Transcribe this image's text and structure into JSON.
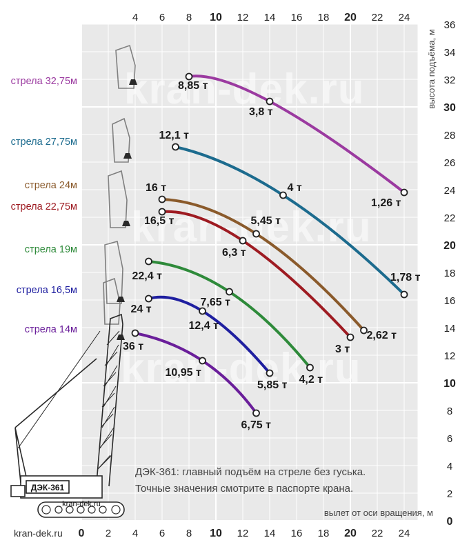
{
  "chart_data": {
    "type": "line",
    "x_axis": {
      "title": "вылет от оси вращения, м",
      "min": 0,
      "max": 25,
      "ticks_top": [
        4,
        6,
        8,
        10,
        12,
        14,
        16,
        18,
        20,
        22,
        24
      ],
      "ticks_bottom": [
        0,
        2,
        4,
        6,
        8,
        10,
        12,
        14,
        16,
        18,
        20,
        22,
        24
      ],
      "bold_ticks": [
        0,
        10,
        20
      ]
    },
    "y_axis": {
      "title": "высота подъёма, м",
      "min": 0,
      "max": 36,
      "ticks": [
        0,
        2,
        4,
        6,
        8,
        10,
        12,
        14,
        16,
        18,
        20,
        22,
        24,
        26,
        28,
        30,
        32,
        34,
        36
      ],
      "bold_ticks": [
        0,
        10,
        20,
        30
      ]
    },
    "grid": true,
    "series": [
      {
        "name": "стрела 32,75м",
        "color": "#9b3aa0",
        "points": [
          {
            "x": 8,
            "y": 32.2,
            "label": "8,85 т"
          },
          {
            "x": 14,
            "y": 30.4,
            "label": "3,8 т"
          },
          {
            "x": 24,
            "y": 23.8,
            "label": "1,26 т"
          }
        ]
      },
      {
        "name": "стрела 27,75м",
        "color": "#1c6b8e",
        "points": [
          {
            "x": 7,
            "y": 27.1,
            "label": "12,1 т"
          },
          {
            "x": 15,
            "y": 23.6,
            "label": "4 т"
          },
          {
            "x": 24,
            "y": 16.4,
            "label": "1,78 т"
          }
        ]
      },
      {
        "name": "стрела 24м",
        "color": "#8a5a2b",
        "points": [
          {
            "x": 6,
            "y": 23.3,
            "label": "16 т"
          },
          {
            "x": 13,
            "y": 20.8,
            "label": "5,45 т"
          },
          {
            "x": 21,
            "y": 13.8,
            "label": "2,62 т"
          }
        ]
      },
      {
        "name": "стрела 22,75м",
        "color": "#9e1b22",
        "points": [
          {
            "x": 6,
            "y": 22.4,
            "label": "16,5 т"
          },
          {
            "x": 12,
            "y": 20.3,
            "label": "6,3 т"
          },
          {
            "x": 20,
            "y": 13.3,
            "label": "3 т"
          }
        ]
      },
      {
        "name": "стрела 19м",
        "color": "#2e8a3a",
        "points": [
          {
            "x": 5,
            "y": 18.8,
            "label": "22,4 т"
          },
          {
            "x": 11,
            "y": 16.6,
            "label": "7,65 т"
          },
          {
            "x": 17,
            "y": 11.1,
            "label": "4,2 т"
          }
        ]
      },
      {
        "name": "стрела 16,5м",
        "color": "#1f1fa0",
        "points": [
          {
            "x": 5,
            "y": 16.1,
            "label": "24 т"
          },
          {
            "x": 9,
            "y": 15.2,
            "label": "12,4 т"
          },
          {
            "x": 14,
            "y": 10.7,
            "label": "5,85 т"
          }
        ]
      },
      {
        "name": "стрела 14м",
        "color": "#6a1e9a",
        "points": [
          {
            "x": 4,
            "y": 13.6,
            "label": "36 т"
          },
          {
            "x": 9,
            "y": 11.6,
            "label": "10,95 т"
          },
          {
            "x": 13,
            "y": 7.8,
            "label": "6,75 т"
          }
        ]
      }
    ]
  },
  "watermark": "kran-dek.ru",
  "site_label": "kran-dek.ru",
  "crane_plate": "ДЭК-361",
  "crane_site": "kran-dek.ru",
  "note": {
    "line1": "ДЭК-361: главный подъём на стреле без гуська.",
    "line2": "Точные значения смотрите в паспорте крана."
  }
}
